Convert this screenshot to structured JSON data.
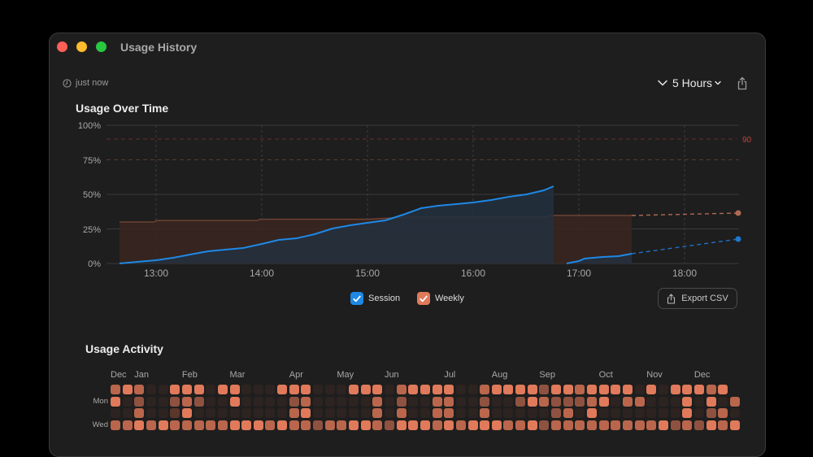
{
  "window": {
    "title": "Usage History",
    "traffic_lights": [
      "close",
      "minimize",
      "zoom"
    ]
  },
  "toolbar": {
    "updated_icon": "clock-icon",
    "updated_label": "just now",
    "range_label": "5 Hours",
    "share_icon": "share-icon"
  },
  "usage_over_time": {
    "title": "Usage Over Time",
    "legend": [
      {
        "label": "Session",
        "color": "#1e88e5",
        "checked": true
      },
      {
        "label": "Weekly",
        "color": "#e07a5a",
        "checked": true
      }
    ],
    "export_label": "Export CSV",
    "threshold_label": "90"
  },
  "chart_data": {
    "type": "line",
    "title": "Usage Over Time",
    "xlabel": "",
    "ylabel": "",
    "ylim": [
      0,
      100
    ],
    "y_ticks": [
      "0%",
      "25%",
      "50%",
      "75%",
      "100%"
    ],
    "x_ticks": [
      "13:00",
      "14:00",
      "15:00",
      "16:00",
      "17:00",
      "18:00"
    ],
    "grid": true,
    "legend_position": "bottom",
    "threshold_lines": [
      {
        "value": 90,
        "label": "90",
        "color": "#b5443d"
      },
      {
        "value": 75,
        "color": "#7a4a3a"
      }
    ],
    "series": [
      {
        "name": "Session",
        "color": "#1e88e5",
        "x": [
          "12:37",
          "12:50",
          "13:00",
          "13:10",
          "13:20",
          "13:30",
          "13:40",
          "13:50",
          "14:00",
          "14:10",
          "14:20",
          "14:30",
          "14:40",
          "14:50",
          "15:00",
          "15:10",
          "15:20",
          "15:30",
          "15:40",
          "15:50",
          "16:00",
          "16:10",
          "16:20",
          "16:30",
          "16:40",
          "16:48"
        ],
        "values": [
          0,
          1,
          2,
          4,
          6,
          9,
          10,
          11,
          14,
          17,
          18,
          21,
          25,
          27,
          29,
          31,
          35,
          40,
          42,
          43,
          44,
          46,
          48,
          50,
          53,
          56
        ]
      },
      {
        "name": "Session (new window)",
        "color": "#1e88e5",
        "x": [
          "16:53",
          "17:00",
          "17:10",
          "17:20",
          "17:30",
          "17:33"
        ],
        "values": [
          0,
          2,
          4,
          5,
          6,
          7
        ]
      },
      {
        "name": "Session projection",
        "color": "#1e88e5",
        "dashed": true,
        "x": [
          "17:33",
          "18:30"
        ],
        "values": [
          7,
          18
        ]
      },
      {
        "name": "Weekly",
        "color": "#e07a5a",
        "x": [
          "12:37",
          "13:00",
          "13:10",
          "14:00",
          "14:10",
          "15:00",
          "15:30",
          "16:00",
          "16:48",
          "17:33"
        ],
        "values": [
          30,
          30,
          31,
          31,
          32,
          32,
          34,
          34,
          35,
          35
        ]
      },
      {
        "name": "Weekly projection",
        "color": "#e07a5a",
        "dashed": true,
        "x": [
          "17:33",
          "18:30"
        ],
        "values": [
          35,
          36
        ]
      }
    ]
  },
  "usage_activity": {
    "title": "Usage Activity",
    "months": [
      {
        "label": "Dec",
        "col": 0
      },
      {
        "label": "Jan",
        "col": 2
      },
      {
        "label": "Feb",
        "col": 6
      },
      {
        "label": "Mar",
        "col": 10
      },
      {
        "label": "Apr",
        "col": 15
      },
      {
        "label": "May",
        "col": 19
      },
      {
        "label": "Jun",
        "col": 23
      },
      {
        "label": "Jul",
        "col": 28
      },
      {
        "label": "Aug",
        "col": 32
      },
      {
        "label": "Sep",
        "col": 36
      },
      {
        "label": "Oct",
        "col": 41
      },
      {
        "label": "Nov",
        "col": 45
      },
      {
        "label": "Dec",
        "col": 49
      }
    ],
    "row_labels": [
      "",
      "Mon",
      "",
      "Wed"
    ],
    "levels_colors": [
      "#2d2320",
      "#5a362b",
      "#8f5240",
      "#b9664c",
      "#e07a5a"
    ],
    "grid": [
      [
        3,
        4,
        3,
        0,
        0,
        4,
        4,
        4,
        0,
        4,
        4,
        0,
        0,
        0,
        4,
        4,
        4,
        0,
        0,
        0,
        4,
        4,
        4,
        0,
        3,
        4,
        4,
        4,
        4,
        0,
        0,
        3,
        4,
        4,
        4,
        4,
        2,
        4,
        4,
        3,
        4,
        4,
        4,
        4,
        0,
        4,
        0,
        4,
        4,
        4,
        3,
        4
      ],
      [
        4,
        0,
        2,
        0,
        0,
        2,
        3,
        2,
        0,
        0,
        4,
        0,
        0,
        0,
        0,
        2,
        3,
        0,
        0,
        0,
        0,
        0,
        3,
        0,
        2,
        0,
        0,
        3,
        3,
        0,
        0,
        2,
        0,
        0,
        2,
        4,
        3,
        2,
        2,
        2,
        3,
        4,
        0,
        3,
        3,
        0,
        0,
        0,
        4,
        0,
        4,
        0,
        3
      ],
      [
        0,
        0,
        3,
        0,
        0,
        1,
        4,
        0,
        0,
        0,
        0,
        0,
        0,
        0,
        0,
        3,
        4,
        0,
        0,
        0,
        0,
        0,
        3,
        0,
        3,
        0,
        0,
        3,
        3,
        0,
        0,
        3,
        0,
        0,
        0,
        0,
        0,
        2,
        3,
        0,
        4,
        0,
        0,
        0,
        0,
        0,
        0,
        0,
        4,
        0,
        2,
        3,
        0
      ],
      [
        3,
        3,
        4,
        3,
        4,
        3,
        3,
        3,
        3,
        3,
        4,
        4,
        4,
        3,
        4,
        3,
        3,
        2,
        3,
        3,
        4,
        4,
        3,
        2,
        4,
        4,
        4,
        3,
        4,
        3,
        4,
        4,
        4,
        3,
        3,
        4,
        2,
        3,
        3,
        3,
        3,
        3,
        3,
        3,
        3,
        3,
        4,
        2,
        3,
        2,
        4,
        3,
        4
      ]
    ]
  }
}
